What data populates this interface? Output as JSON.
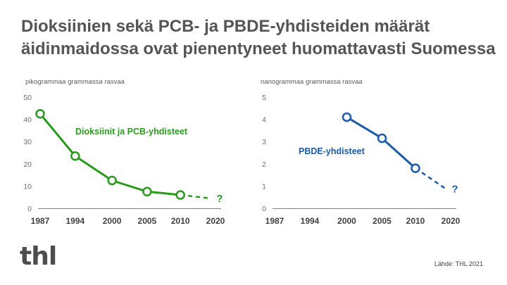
{
  "title_lines": [
    "Dioksiinien sekä PCB- ja PBDE-yhdisteiden määrät",
    "äidinmaidossa ovat pienentyneet huomattavasti Suomessa"
  ],
  "logo_text": "thl",
  "source_text": "Lähde: THL 2021",
  "colors": {
    "green": "#2a9a1e",
    "blue": "#1a5aa6",
    "axis": "#7f7f7f"
  },
  "chart_data": [
    {
      "type": "line",
      "ylabel": "pikogrammaa grammassa rasvaa",
      "x_ticks": [
        "1987",
        "1994",
        "2000",
        "2005",
        "2010",
        "2020"
      ],
      "xlim": [
        1987,
        2020
      ],
      "ylim": [
        0,
        50
      ],
      "y_ticks": [
        "0",
        "10",
        "20",
        "30",
        "40",
        "50"
      ],
      "grid": false,
      "series": [
        {
          "name": "Dioksiinit ja PCB-yhdisteet",
          "color": "#2a9a1e",
          "x": [
            1987,
            1994,
            2000,
            2005,
            2010
          ],
          "values": [
            42.5,
            23.5,
            12.5,
            7.5,
            6
          ]
        }
      ],
      "projection": {
        "x": [
          2010,
          2020
        ],
        "values": [
          6,
          4.5
        ],
        "marker": "?"
      }
    },
    {
      "type": "line",
      "ylabel": "nanogrammaa grammassa rasvaa",
      "x_ticks": [
        "1987",
        "1994",
        "2000",
        "2005",
        "2010",
        "2020"
      ],
      "xlim": [
        1987,
        2020
      ],
      "ylim": [
        0,
        5
      ],
      "y_ticks": [
        "0",
        "1",
        "2",
        "3",
        "4",
        "5"
      ],
      "grid": false,
      "series": [
        {
          "name": "PBDE-yhdisteet",
          "color": "#1a5aa6",
          "x": [
            2000,
            2005,
            2010
          ],
          "values": [
            4.1,
            3.15,
            1.8
          ]
        }
      ],
      "projection": {
        "x": [
          2010,
          2020
        ],
        "values": [
          1.8,
          0.9
        ],
        "marker": "?"
      }
    }
  ]
}
